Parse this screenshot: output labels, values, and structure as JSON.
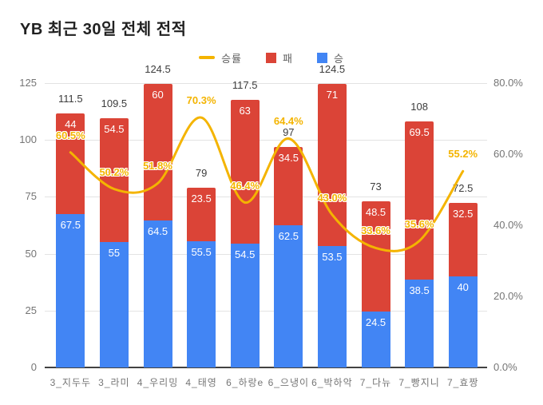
{
  "title": "YB 최근 30일 전체 전적",
  "legend": {
    "items": [
      {
        "label": "승률",
        "shape": "line",
        "color": "#f4b400"
      },
      {
        "label": "패",
        "shape": "box",
        "color": "#db4437"
      },
      {
        "label": "승",
        "shape": "box",
        "color": "#4285f4"
      }
    ]
  },
  "colors": {
    "win_bar": "#4285f4",
    "loss_bar": "#db4437",
    "rate_line": "#f4b400",
    "axis_text": "#757575",
    "grid": "#e3e3e3",
    "baseline": "#424242",
    "total_label": "#3c3c3c",
    "title_text": "#212121"
  },
  "chart_data": {
    "type": "bar",
    "subtype": "stacked-bar-with-line-overlay",
    "title": "YB 최근 30일 전체 전적",
    "categories": [
      "3_지두두",
      "3_라미",
      "4_우리밍",
      "4_태영",
      "6_하랑e",
      "6_으냉이",
      "6_박하악",
      "7_다뉴",
      "7_빵지니",
      "7_효짱"
    ],
    "series": [
      {
        "name": "승",
        "type": "bar",
        "stack": true,
        "color": "#4285f4",
        "axis": "left",
        "values": [
          67.5,
          55,
          64.5,
          55.5,
          54.5,
          62.5,
          53.5,
          24.5,
          38.5,
          40
        ]
      },
      {
        "name": "패",
        "type": "bar",
        "stack": true,
        "color": "#db4437",
        "axis": "left",
        "values": [
          44,
          54.5,
          60,
          23.5,
          63,
          34.5,
          71,
          48.5,
          69.5,
          32.5
        ]
      },
      {
        "name": "승률",
        "type": "line",
        "stack": false,
        "color": "#f4b400",
        "axis": "right",
        "values": [
          60.5,
          50.2,
          51.8,
          70.3,
          46.4,
          64.4,
          43.0,
          33.6,
          35.6,
          55.2
        ],
        "labels": [
          "60.5%",
          "50.2%",
          "51.8%",
          "70.3%",
          "46.4%",
          "64.4%",
          "43.0%",
          "33.6%",
          "35.6%",
          "55.2%"
        ]
      }
    ],
    "totals": [
      111.5,
      109.5,
      124.5,
      79,
      117.5,
      97,
      124.5,
      73,
      108,
      72.5
    ],
    "left_axis": {
      "ticks": [
        0,
        25,
        50,
        75,
        100,
        125
      ],
      "min": 0,
      "max": 125
    },
    "right_axis": {
      "labels": [
        "0.0%",
        "20.0%",
        "40.0%",
        "60.0%",
        "80.0%"
      ],
      "values": [
        0,
        20,
        40,
        60,
        80
      ],
      "min": 0,
      "max": 80
    },
    "grid": "horizontal-only",
    "legend_position": "top-center",
    "line_style": "smooth"
  }
}
